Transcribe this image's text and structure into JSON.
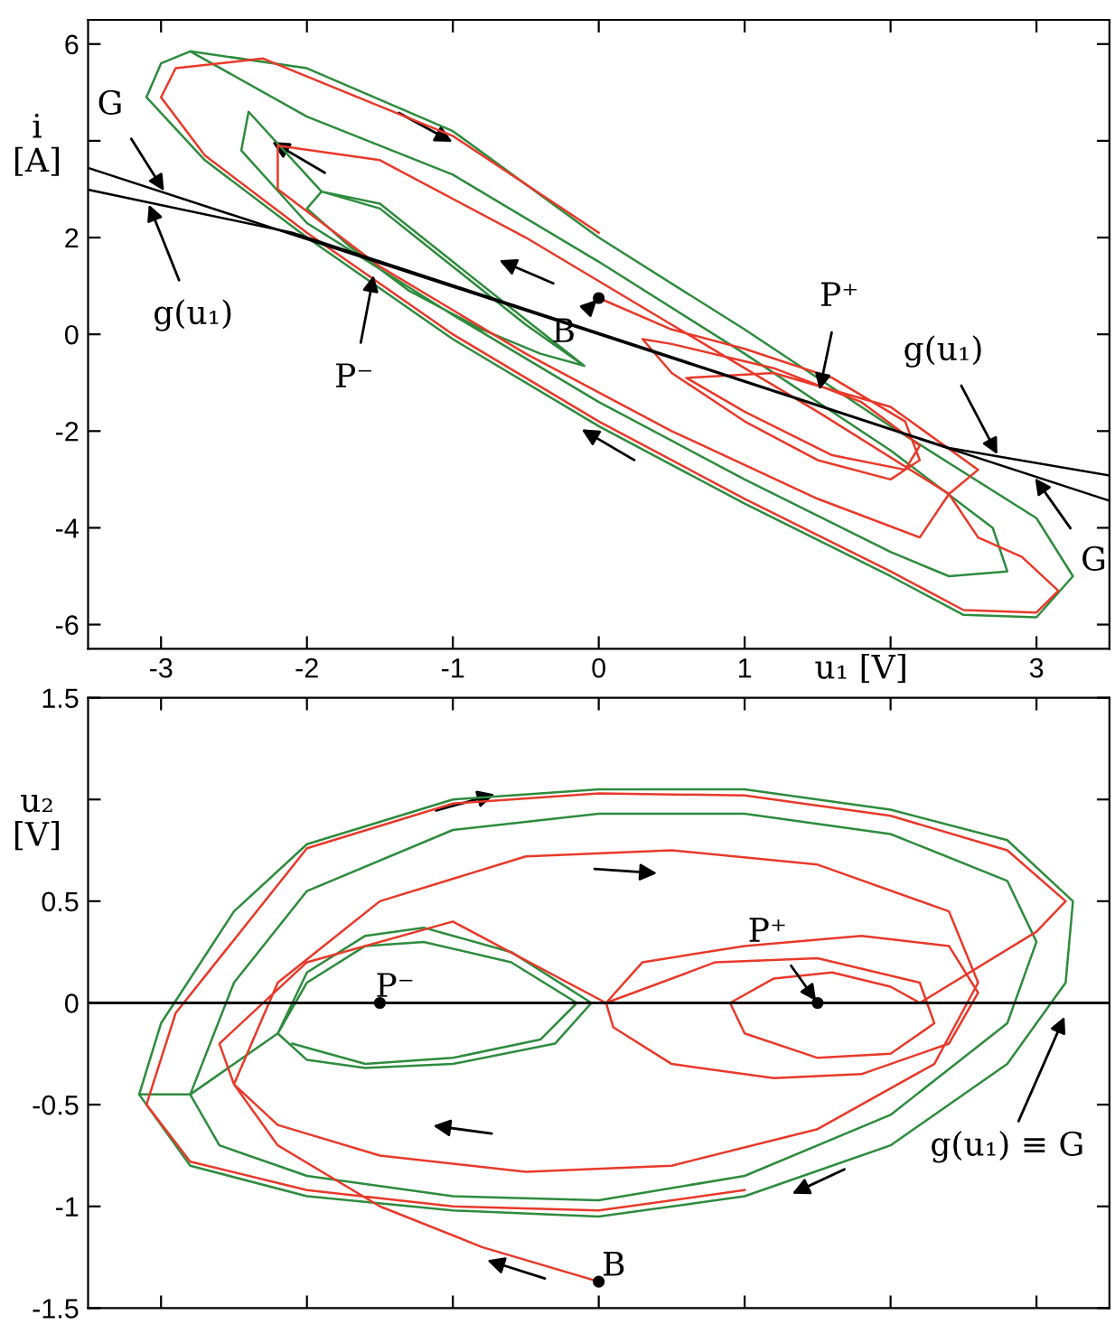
{
  "chart_data": [
    {
      "type": "line",
      "xlabel": "u₁ [V]",
      "ylabel": "i\n[A]",
      "xlim": [
        -3.5,
        3.5
      ],
      "ylim": [
        -6.5,
        6.5
      ],
      "xticks": [
        {
          "value": -3,
          "label": "-3"
        },
        {
          "value": -2,
          "label": "-2"
        },
        {
          "value": -1,
          "label": "-1"
        },
        0,
        1,
        {
          "value": 2,
          "label": null
        },
        3
      ],
      "yticks": [
        {
          "value": -6,
          "label": "-6"
        },
        {
          "value": -4,
          "label": "-4"
        },
        {
          "value": -2,
          "label": "-2"
        },
        0,
        2,
        {
          "value": 4,
          "label": null
        },
        6
      ],
      "series": [
        {
          "color": "#2e8b3e",
          "x": [
            -2.8,
            -2,
            -1,
            0,
            1,
            2,
            3,
            3.25,
            3.0,
            2.5,
            2,
            1,
            0,
            -1,
            -2,
            -2.7,
            -3.1,
            -3.0,
            -2.8,
            -2,
            -1,
            0,
            1,
            2,
            2.7,
            2.8,
            2.4,
            2,
            1,
            0,
            -1,
            -2,
            -2.45,
            -2.4,
            -1.9,
            -1.5,
            -1.0,
            -0.5,
            -0.1,
            -0.4,
            -0.8,
            -1.3,
            -1.7,
            -2.0,
            -1.9,
            -1.5,
            -1.0,
            -0.5,
            -0.1
          ],
          "values": [
            5.85,
            5.5,
            4.2,
            2.0,
            0.1,
            -1.9,
            -3.8,
            -5.0,
            -5.85,
            -5.8,
            -5.0,
            -3.5,
            -1.9,
            -0.1,
            2.0,
            3.6,
            4.9,
            5.6,
            5.85,
            4.5,
            3.3,
            1.5,
            -0.4,
            -2.4,
            -4.0,
            -4.9,
            -5.0,
            -4.5,
            -3.0,
            -1.4,
            0.4,
            2.3,
            3.8,
            4.6,
            2.95,
            2.7,
            1.5,
            0.3,
            -0.65,
            -0.4,
            0.1,
            0.9,
            1.8,
            2.6,
            2.95,
            2.6,
            1.4,
            0.2,
            -0.65
          ]
        },
        {
          "color": "#e8392a",
          "x": [
            0,
            0.5,
            1,
            1.6,
            2.1,
            2.2,
            2.0,
            1.5,
            1.0,
            0.5,
            0.3,
            0.5,
            1.2,
            1.8,
            2.2,
            2.1,
            1.6,
            1.0,
            0.6,
            1.2,
            2.0,
            2.6,
            2.4,
            2.2,
            1.5,
            0.5,
            -0.5,
            -1.5,
            -2.2,
            -2.2,
            -1.5,
            -0.5,
            0.5,
            1.5,
            2.4,
            2.6,
            2.9,
            3.15,
            3.0,
            2.5,
            2,
            1,
            0,
            -1,
            -2,
            -2.7,
            -3.0,
            -2.9,
            -2.3,
            -1,
            0
          ],
          "values": [
            0.75,
            0.1,
            -0.3,
            -0.9,
            -1.8,
            -2.6,
            -3.0,
            -2.6,
            -1.8,
            -0.8,
            -0.1,
            -0.2,
            -0.7,
            -1.4,
            -2.3,
            -2.8,
            -2.5,
            -1.6,
            -0.9,
            -0.8,
            -1.5,
            -2.8,
            -3.3,
            -4.2,
            -3.4,
            -2.0,
            -0.4,
            1.4,
            3.0,
            3.9,
            3.6,
            2.0,
            0.2,
            -1.6,
            -3.3,
            -4.2,
            -4.6,
            -5.3,
            -5.75,
            -5.7,
            -4.9,
            -3.4,
            -1.8,
            0.0,
            2.1,
            3.7,
            4.9,
            5.5,
            5.7,
            4.1,
            2.1
          ]
        },
        {
          "color": "#000000",
          "x": [
            -3.5,
            3.5
          ],
          "values": [
            3.44,
            -3.44
          ]
        },
        {
          "color": "#000000",
          "x": [
            -3.5,
            -2.1,
            2.4,
            3.5
          ],
          "values": [
            2.99,
            2.1,
            -2.35,
            -2.92
          ]
        },
        {
          "type": "scatter",
          "color": "#000000",
          "marker": "circle",
          "x": [
            0
          ],
          "values": [
            0.75
          ]
        }
      ],
      "annotations": [
        {
          "text": "G",
          "x": -2.97,
          "y": 2.92
        },
        {
          "text": "g(u₁)",
          "x": -3.09,
          "y": 2.73
        },
        {
          "text": "P⁻",
          "x": -1.54,
          "y": 1.27
        },
        {
          "text": "B",
          "x": 0,
          "y": 0.75
        },
        {
          "text": "P⁺",
          "x": 1.51,
          "y": -1.2
        },
        {
          "text": "g(u₁)",
          "x": 2.74,
          "y": -2.53
        },
        {
          "text": "G",
          "x": 2.98,
          "y": -2.93
        }
      ]
    },
    {
      "type": "line",
      "ylabel": "u₂\n[V]",
      "xlim": [
        -3.5,
        3.5
      ],
      "ylim": [
        -1.5,
        1.5
      ],
      "tick_labels": "y",
      "xticks": [
        {
          "value": -3,
          "label": null
        },
        {
          "value": -2,
          "label": null
        },
        {
          "value": -1,
          "label": null
        },
        {
          "value": 0,
          "label": null
        },
        {
          "value": 1,
          "label": null
        },
        {
          "value": 2,
          "label": null
        },
        {
          "value": 3,
          "label": null
        }
      ],
      "yticks": [
        {
          "value": -1.5,
          "label": "-1.5"
        },
        {
          "value": -1,
          "label": "-1"
        },
        {
          "value": -0.5,
          "label": "-0.5"
        },
        0,
        0.5,
        {
          "value": 1,
          "label": null
        },
        1.5
      ],
      "series": [
        {
          "color": "#2e8b3e",
          "x": [
            -3.15,
            -3.0,
            -2.5,
            -2,
            -1,
            0,
            1,
            2,
            2.8,
            3.25,
            3.2,
            2.8,
            2,
            1,
            0,
            -1,
            -2,
            -2.8,
            -3.15,
            -2.8,
            -2.5,
            -2,
            -1,
            0,
            1,
            2,
            2.8,
            3.0,
            2.8,
            2,
            1,
            0,
            -1,
            -2,
            -2.6,
            -2.8,
            -2.2,
            -2.0,
            -1.6,
            -1.2,
            -0.6,
            -0.05,
            -0.3,
            -1.0,
            -1.6,
            -2.0,
            -2.2,
            -2.0,
            -1.6,
            -1.2,
            -0.6,
            -0.15,
            -0.4,
            -1.0,
            -1.6,
            -2.1
          ],
          "values": [
            -0.45,
            -0.1,
            0.45,
            0.78,
            1.0,
            1.05,
            1.05,
            0.95,
            0.8,
            0.5,
            0.1,
            -0.3,
            -0.7,
            -0.95,
            -1.05,
            -1.02,
            -0.95,
            -0.8,
            -0.45,
            -0.45,
            0.1,
            0.55,
            0.85,
            0.93,
            0.93,
            0.83,
            0.6,
            0.3,
            -0.1,
            -0.55,
            -0.85,
            -0.97,
            -0.95,
            -0.85,
            -0.7,
            -0.45,
            -0.15,
            0.15,
            0.33,
            0.37,
            0.25,
            0.0,
            -0.2,
            -0.3,
            -0.32,
            -0.28,
            -0.15,
            0.1,
            0.28,
            0.3,
            0.2,
            0.0,
            -0.18,
            -0.27,
            -0.3,
            -0.2
          ]
        },
        {
          "color": "#e8392a",
          "x": [
            0,
            -0.8,
            -1.5,
            -2.2,
            -2.5,
            -2.2,
            -1.5,
            -0.5,
            0.5,
            1.5,
            2.4,
            2.6,
            2.3,
            1.5,
            0.5,
            -0.5,
            -1.5,
            -2.2,
            -2.5,
            -2.6,
            -2.0,
            -1.0,
            0.05,
            0.3,
            1.0,
            1.8,
            2.4,
            2.6,
            2.4,
            1.8,
            1.2,
            0.5,
            0.1,
            0.05,
            0.8,
            1.5,
            2.2,
            2.3,
            2.0,
            1.5,
            1.0,
            0.9,
            1.2,
            1.6,
            2.0,
            2.2,
            3.0,
            3.2,
            2.8,
            2,
            1,
            0,
            -1,
            -2,
            -2.9,
            -3.1,
            -2.8,
            -2,
            -1,
            0,
            1
          ],
          "values": [
            -1.37,
            -1.2,
            -1.0,
            -0.7,
            -0.4,
            0.1,
            0.5,
            0.72,
            0.75,
            0.68,
            0.45,
            0.1,
            -0.3,
            -0.62,
            -0.8,
            -0.83,
            -0.75,
            -0.6,
            -0.4,
            -0.2,
            0.2,
            0.4,
            0.0,
            0.2,
            0.28,
            0.33,
            0.28,
            0.05,
            -0.2,
            -0.35,
            -0.37,
            -0.3,
            -0.12,
            0.0,
            0.2,
            0.22,
            0.1,
            -0.1,
            -0.25,
            -0.27,
            -0.15,
            0.0,
            0.12,
            0.15,
            0.08,
            0.0,
            0.35,
            0.5,
            0.75,
            0.92,
            1.02,
            1.03,
            0.98,
            0.76,
            -0.05,
            -0.5,
            -0.78,
            -0.92,
            -1.0,
            -1.02,
            -0.92
          ]
        },
        {
          "type": "scatter",
          "color": "#000000",
          "marker": "circle",
          "x": [
            -1.5,
            1.5,
            0
          ],
          "values": [
            0,
            0,
            -1.37
          ]
        }
      ],
      "ref_lines": [
        {
          "axis": "y",
          "value": 0,
          "label": "g(u₁) ≡ G",
          "color": "#000000"
        }
      ],
      "annotations": [
        {
          "text": "P⁻",
          "x": -1.5,
          "y": 0
        },
        {
          "text": "P⁺",
          "x": 1.5,
          "y": 0
        },
        {
          "text": "B",
          "x": 0,
          "y": -1.37
        }
      ]
    }
  ]
}
